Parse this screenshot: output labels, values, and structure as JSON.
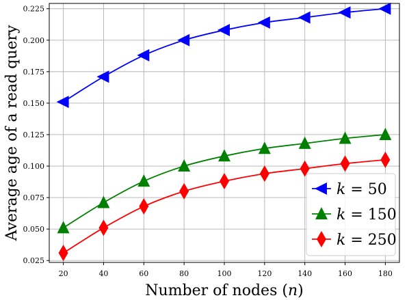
{
  "chart_data": {
    "type": "line",
    "xlabel": "Number of nodes (n)",
    "xlabel_parts": {
      "prefix": "Number of nodes (",
      "var": "n",
      "suffix": ")"
    },
    "ylabel": "Average age of a read query",
    "x": [
      20,
      40,
      60,
      80,
      100,
      120,
      140,
      160,
      180
    ],
    "xlim": [
      13,
      187
    ],
    "ylim": [
      0.0235,
      0.2292
    ],
    "xticks": [
      "20",
      "40",
      "60",
      "80",
      "100",
      "120",
      "140",
      "160",
      "180"
    ],
    "yticks": [
      "0.025",
      "0.050",
      "0.075",
      "0.100",
      "0.125",
      "0.150",
      "0.175",
      "0.200",
      "0.225"
    ],
    "ytick_values": [
      0.025,
      0.05,
      0.075,
      0.1,
      0.125,
      0.15,
      0.175,
      0.2,
      0.225
    ],
    "grid": true,
    "legend_position": "bottom-right",
    "series": [
      {
        "name": "k = 50",
        "label_var": "k",
        "label_value": "= 50",
        "color": "#0000ff",
        "marker": "triangle-left",
        "values": [
          0.151,
          0.171,
          0.188,
          0.2,
          0.208,
          0.214,
          0.218,
          0.222,
          0.225
        ]
      },
      {
        "name": "k = 150",
        "label_var": "k",
        "label_value": "= 150",
        "color": "#008000",
        "marker": "triangle-up",
        "values": [
          0.051,
          0.071,
          0.088,
          0.1,
          0.108,
          0.114,
          0.118,
          0.122,
          0.125
        ]
      },
      {
        "name": "k = 250",
        "label_var": "k",
        "label_value": "= 250",
        "color": "#ff0000",
        "marker": "thin-diamond",
        "values": [
          0.031,
          0.051,
          0.068,
          0.08,
          0.088,
          0.094,
          0.098,
          0.102,
          0.105
        ]
      }
    ]
  }
}
